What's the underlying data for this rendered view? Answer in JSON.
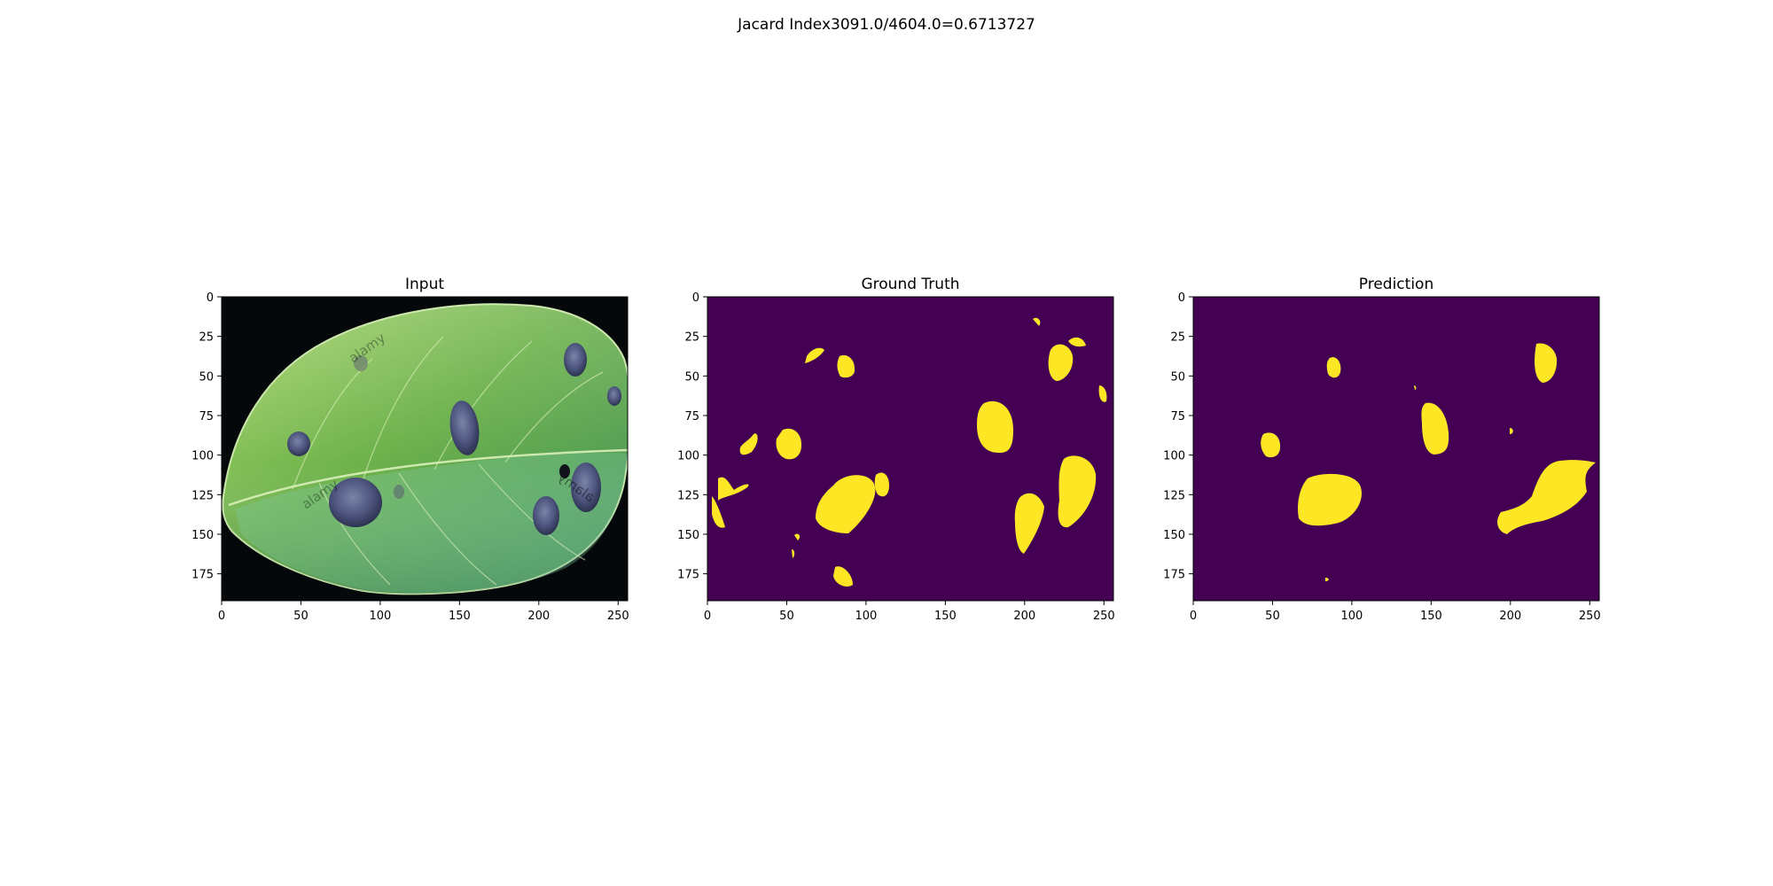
{
  "suptitle": "Jacard Index3091.0/4604.0=0.6713727",
  "panels": [
    {
      "title": "Input",
      "kind": "photo"
    },
    {
      "title": "Ground Truth",
      "kind": "mask"
    },
    {
      "title": "Prediction",
      "kind": "mask"
    }
  ],
  "axes": {
    "x_ticks": [
      "0",
      "50",
      "100",
      "150",
      "200",
      "250"
    ],
    "y_ticks": [
      "0",
      "25",
      "50",
      "75",
      "100",
      "125",
      "150",
      "175"
    ],
    "xlim": [
      0,
      256
    ],
    "ylim": [
      192,
      0
    ]
  },
  "watermark": "alamy",
  "colors": {
    "mask_background": "#440154",
    "mask_foreground": "#fde725",
    "photo_background": "#05080a",
    "leaf_light": "#9ccf63",
    "leaf_mid": "#5aa343",
    "leaf_dark": "#3d7f42",
    "lesion": "#4e557f"
  }
}
